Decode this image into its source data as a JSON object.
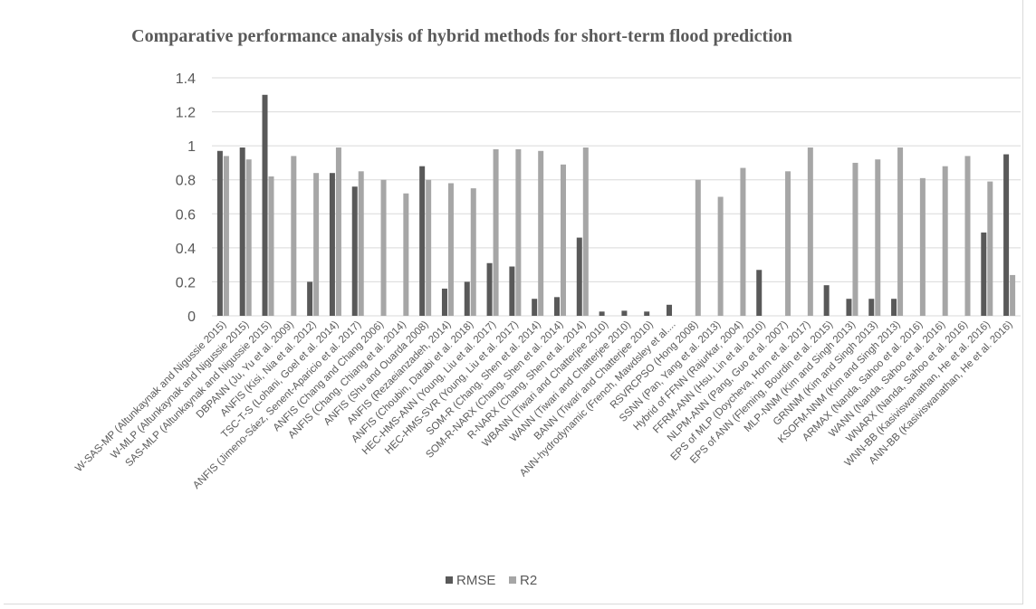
{
  "chart_data": {
    "type": "bar",
    "title": "Comparative performance analysis of hybrid methods for short-term flood prediction",
    "xlabel": "",
    "ylabel": "",
    "ylim": [
      0,
      1.4
    ],
    "yticks": [
      "0",
      "0.2",
      "0.4",
      "0.6",
      "0.8",
      "1",
      "1.2",
      "1.4"
    ],
    "grid": true,
    "legend_position": "bottom",
    "colors": {
      "RMSE": "#595959",
      "R2": "#a6a6a6",
      "grid": "#d9d9d9",
      "text": "#595959"
    },
    "categories": [
      "W-SAS-MP (Altunkaynak and Nigussie 2015)",
      "W-MLP (Altunkaynak and Nigussie 2015)",
      "SAS-MLP (Altunkaynak and Nigussie 2015)",
      "DBPANN (Ju, Yu et al. 2009)",
      "ANFIS (Kisi, Nia et al. 2012)",
      "TSC-T-S (Lohani, Goel et al. 2014)",
      "ANFIS (Jimeno-Sáez, Senent-Aparicio et al. 2017)",
      "ANFIS (Chang and Chang 2006)",
      "ANFIS (Chang, Chiang et al. 2014)",
      "ANFIS (Shu and Ouarda 2008)",
      "ANFIS (Rezaeianzadeh, 2014)",
      "ANFIS (Choubin, Darabi et al. 2018)",
      "HEC-HMS-ANN (Young, Liu et al. 2017)",
      "HEC-HMS-SVR (Young, Liu et al. 2017)",
      "SOM-R (Chang, Shen et al. 2014)",
      "SOM-R-NARX (Chang, Shen et al. 2014)",
      "R-NARX (Chang, Shen et al. 2014)",
      "WBANN (Tiwari and Chatterjee 2010)",
      "WANN (Tiwari and Chatterjee 2010)",
      "BANN (Tiwari and Chatterjee 2010)",
      "ANN-hydrodynamic (French, Mawdsley et al....",
      "RSVRCPSO (Hong 2008)",
      "SSNN (Pan, Yang et al. 2013)",
      "Hybrid of FFNN (Rajurkar, 2004)",
      "FFRM-ANN (Hsu, Lin et al. 2010)",
      "NLPM-ANN (Pang, Guo et al. 2007)",
      "EPS of MLP (Doycheva, Horn et al. 2017)",
      "EPS of ANN (Fleming, Bourdin et al. 2015)",
      "MLP-NNM (Kim and Singh 2013)",
      "GRNNM (Kim and Singh 2013)",
      "KSOFM-NNM (Kim and Singh 2013)",
      "ARMAX (Nanda, Sahoo et al. 2016)",
      "WANN (Nanda, Sahoo et al. 2016)",
      "WNARX (Nanda, Sahoo et al. 2016)",
      "WNN-BB (Kasiviswanathan, He et al. 2016)",
      "ANN-BB (Kasiviswanathan, He et al. 2016)"
    ],
    "series": [
      {
        "name": "RMSE",
        "values": [
          0.97,
          0.99,
          1.3,
          null,
          0.2,
          0.84,
          0.76,
          null,
          null,
          0.88,
          0.16,
          0.2,
          0.31,
          0.29,
          0.1,
          0.11,
          0.46,
          0.025,
          0.03,
          0.025,
          0.065,
          null,
          null,
          null,
          0.27,
          null,
          null,
          0.18,
          0.1,
          0.1,
          0.1,
          null,
          null,
          null,
          0.49,
          0.95
        ]
      },
      {
        "name": "R2",
        "values": [
          0.94,
          0.92,
          0.82,
          0.94,
          0.84,
          0.99,
          0.85,
          0.8,
          0.72,
          0.8,
          0.78,
          0.75,
          0.98,
          0.98,
          0.97,
          0.89,
          0.99,
          null,
          null,
          null,
          null,
          0.8,
          0.7,
          0.87,
          null,
          0.85,
          0.99,
          null,
          0.9,
          0.92,
          0.99,
          0.81,
          0.88,
          0.94,
          0.79,
          0.24
        ]
      }
    ]
  }
}
